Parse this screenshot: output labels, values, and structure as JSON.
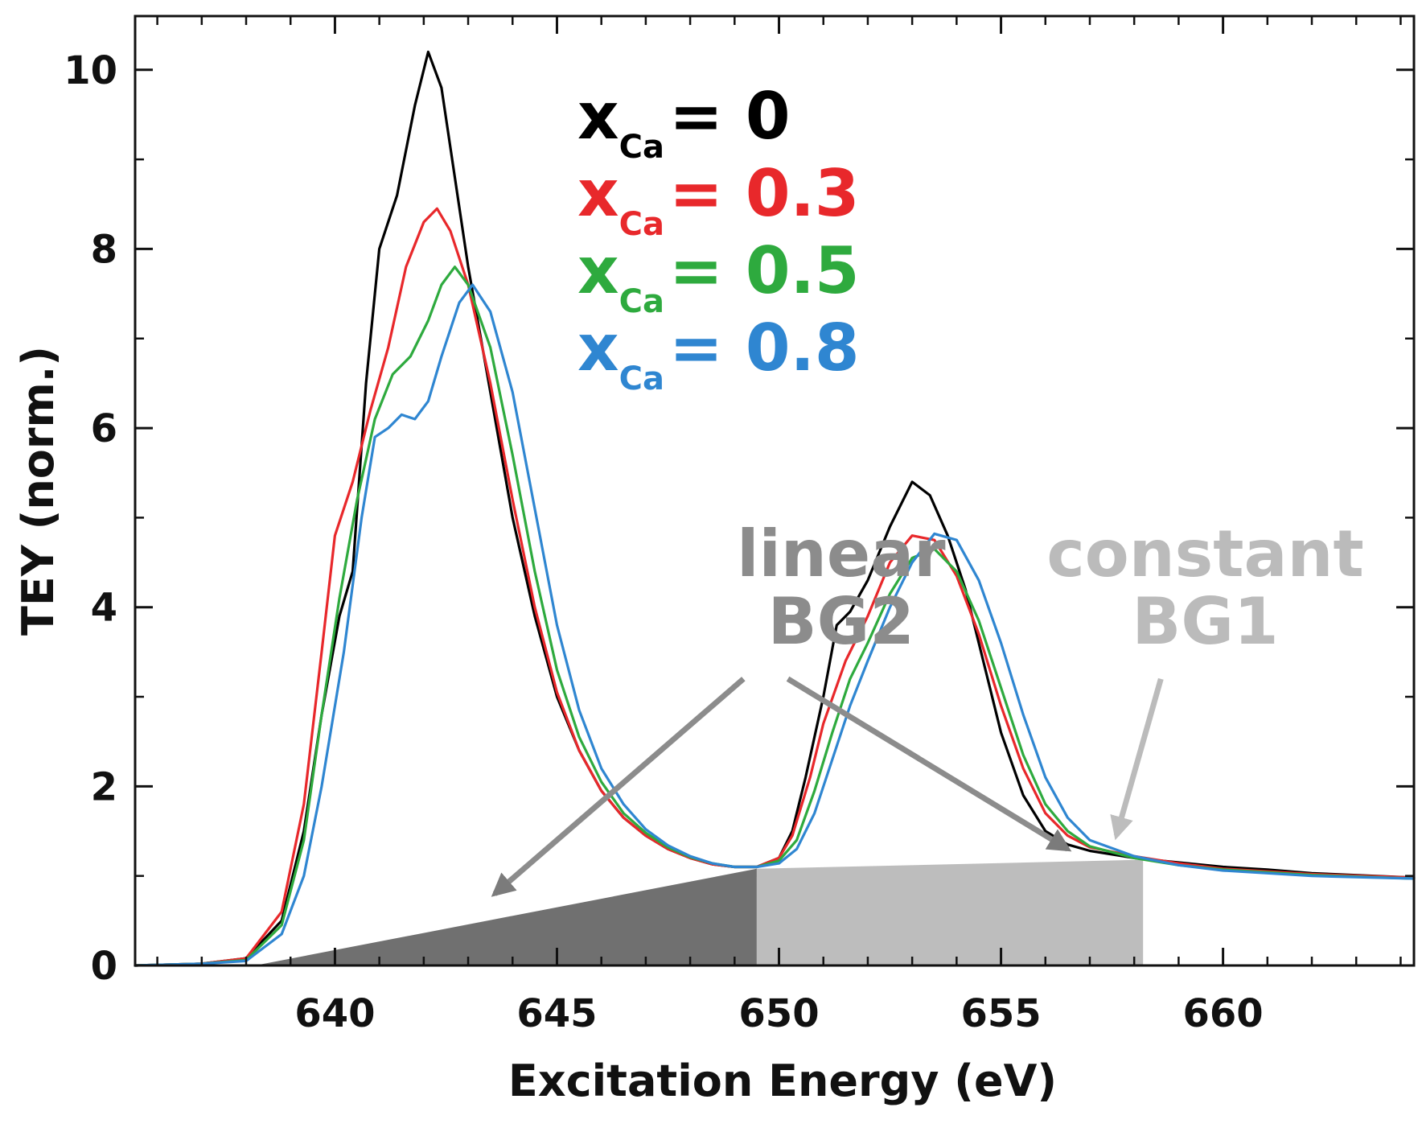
{
  "chart_data": {
    "type": "line",
    "title": "",
    "xlabel": "Excitation Energy (eV)",
    "ylabel": "TEY (norm.)",
    "xlim": [
      635.5,
      664.3
    ],
    "ylim": [
      0,
      10.6
    ],
    "xticks": [
      640,
      645,
      650,
      655,
      660
    ],
    "yticks": [
      0,
      2,
      4,
      6,
      8,
      10
    ],
    "grid": false,
    "legend": {
      "position": "top-center",
      "symbol": "x",
      "subscript": "Ca"
    },
    "series": [
      {
        "name": "x_Ca = 0",
        "label_value": "0",
        "color": "#000000",
        "points": [
          [
            635.5,
            0
          ],
          [
            637,
            0.02
          ],
          [
            638,
            0.08
          ],
          [
            638.8,
            0.5
          ],
          [
            639.3,
            1.5
          ],
          [
            639.7,
            2.8
          ],
          [
            640.1,
            3.9
          ],
          [
            640.4,
            4.4
          ],
          [
            640.7,
            6.5
          ],
          [
            641,
            8.0
          ],
          [
            641.4,
            8.6
          ],
          [
            641.8,
            9.6
          ],
          [
            642.1,
            10.2
          ],
          [
            642.4,
            9.8
          ],
          [
            642.7,
            8.8
          ],
          [
            643,
            7.8
          ],
          [
            643.5,
            6.4
          ],
          [
            644,
            5.0
          ],
          [
            644.5,
            3.9
          ],
          [
            645,
            3.0
          ],
          [
            645.5,
            2.4
          ],
          [
            646,
            1.95
          ],
          [
            646.5,
            1.65
          ],
          [
            647,
            1.45
          ],
          [
            647.5,
            1.3
          ],
          [
            648,
            1.2
          ],
          [
            648.5,
            1.13
          ],
          [
            649,
            1.1
          ],
          [
            649.5,
            1.1
          ],
          [
            650,
            1.2
          ],
          [
            650.3,
            1.5
          ],
          [
            650.6,
            2.1
          ],
          [
            651,
            3.0
          ],
          [
            651.3,
            3.8
          ],
          [
            651.6,
            3.95
          ],
          [
            652,
            4.3
          ],
          [
            652.5,
            4.9
          ],
          [
            653,
            5.4
          ],
          [
            653.4,
            5.25
          ],
          [
            653.8,
            4.8
          ],
          [
            654.2,
            4.2
          ],
          [
            654.6,
            3.4
          ],
          [
            655,
            2.6
          ],
          [
            655.5,
            1.9
          ],
          [
            656,
            1.5
          ],
          [
            656.5,
            1.35
          ],
          [
            657,
            1.28
          ],
          [
            658,
            1.2
          ],
          [
            659,
            1.15
          ],
          [
            660,
            1.1
          ],
          [
            661,
            1.07
          ],
          [
            662,
            1.03
          ],
          [
            664.3,
            0.98
          ]
        ]
      },
      {
        "name": "x_Ca = 0.3",
        "label_value": "0.3",
        "color": "#e8282b",
        "points": [
          [
            635.5,
            0
          ],
          [
            637,
            0.02
          ],
          [
            638,
            0.08
          ],
          [
            638.8,
            0.6
          ],
          [
            639.3,
            1.8
          ],
          [
            639.7,
            3.5
          ],
          [
            640,
            4.8
          ],
          [
            640.4,
            5.4
          ],
          [
            640.8,
            6.2
          ],
          [
            641.2,
            6.9
          ],
          [
            641.6,
            7.8
          ],
          [
            642,
            8.3
          ],
          [
            642.3,
            8.45
          ],
          [
            642.6,
            8.2
          ],
          [
            643,
            7.6
          ],
          [
            643.5,
            6.5
          ],
          [
            644,
            5.2
          ],
          [
            644.5,
            4.0
          ],
          [
            645,
            3.05
          ],
          [
            645.5,
            2.4
          ],
          [
            646,
            1.95
          ],
          [
            646.5,
            1.65
          ],
          [
            647,
            1.45
          ],
          [
            647.5,
            1.3
          ],
          [
            648,
            1.2
          ],
          [
            648.5,
            1.13
          ],
          [
            649,
            1.1
          ],
          [
            649.5,
            1.1
          ],
          [
            650,
            1.2
          ],
          [
            650.3,
            1.45
          ],
          [
            650.7,
            2.1
          ],
          [
            651,
            2.7
          ],
          [
            651.5,
            3.4
          ],
          [
            652,
            3.9
          ],
          [
            652.5,
            4.5
          ],
          [
            653,
            4.8
          ],
          [
            653.5,
            4.75
          ],
          [
            654,
            4.35
          ],
          [
            654.5,
            3.7
          ],
          [
            655,
            2.9
          ],
          [
            655.5,
            2.2
          ],
          [
            656,
            1.7
          ],
          [
            656.5,
            1.45
          ],
          [
            657,
            1.32
          ],
          [
            658,
            1.22
          ],
          [
            659,
            1.14
          ],
          [
            660,
            1.08
          ],
          [
            661,
            1.05
          ],
          [
            662,
            1.02
          ],
          [
            664.3,
            0.98
          ]
        ]
      },
      {
        "name": "x_Ca = 0.5",
        "label_value": "0.5",
        "color": "#2eaa3e",
        "points": [
          [
            635.5,
            0
          ],
          [
            637,
            0.02
          ],
          [
            638,
            0.06
          ],
          [
            638.8,
            0.45
          ],
          [
            639.3,
            1.4
          ],
          [
            639.7,
            2.8
          ],
          [
            640.1,
            4.1
          ],
          [
            640.5,
            5.2
          ],
          [
            640.9,
            6.1
          ],
          [
            641.3,
            6.6
          ],
          [
            641.7,
            6.8
          ],
          [
            642.1,
            7.2
          ],
          [
            642.4,
            7.6
          ],
          [
            642.7,
            7.8
          ],
          [
            643,
            7.6
          ],
          [
            643.5,
            6.9
          ],
          [
            644,
            5.7
          ],
          [
            644.5,
            4.4
          ],
          [
            645,
            3.3
          ],
          [
            645.5,
            2.55
          ],
          [
            646,
            2.05
          ],
          [
            646.5,
            1.7
          ],
          [
            647,
            1.48
          ],
          [
            647.5,
            1.32
          ],
          [
            648,
            1.21
          ],
          [
            648.5,
            1.14
          ],
          [
            649,
            1.1
          ],
          [
            649.5,
            1.1
          ],
          [
            650,
            1.17
          ],
          [
            650.4,
            1.4
          ],
          [
            650.8,
            1.95
          ],
          [
            651.2,
            2.6
          ],
          [
            651.6,
            3.2
          ],
          [
            652,
            3.6
          ],
          [
            652.5,
            4.15
          ],
          [
            653,
            4.55
          ],
          [
            653.5,
            4.65
          ],
          [
            654,
            4.4
          ],
          [
            654.5,
            3.85
          ],
          [
            655,
            3.1
          ],
          [
            655.5,
            2.35
          ],
          [
            656,
            1.8
          ],
          [
            656.5,
            1.5
          ],
          [
            657,
            1.33
          ],
          [
            658,
            1.2
          ],
          [
            659,
            1.12
          ],
          [
            660,
            1.07
          ],
          [
            661,
            1.04
          ],
          [
            662,
            1.01
          ],
          [
            664.3,
            0.97
          ]
        ]
      },
      {
        "name": "x_Ca = 0.8",
        "label_value": "0.8",
        "color": "#2f86d1",
        "points": [
          [
            635.5,
            0
          ],
          [
            637,
            0.02
          ],
          [
            638,
            0.05
          ],
          [
            638.8,
            0.35
          ],
          [
            639.3,
            1.0
          ],
          [
            639.7,
            2.0
          ],
          [
            640.2,
            3.5
          ],
          [
            640.6,
            5.0
          ],
          [
            640.9,
            5.9
          ],
          [
            641.2,
            6.0
          ],
          [
            641.5,
            6.15
          ],
          [
            641.8,
            6.1
          ],
          [
            642.1,
            6.3
          ],
          [
            642.4,
            6.8
          ],
          [
            642.8,
            7.4
          ],
          [
            643.1,
            7.6
          ],
          [
            643.5,
            7.3
          ],
          [
            644,
            6.4
          ],
          [
            644.5,
            5.1
          ],
          [
            645,
            3.8
          ],
          [
            645.5,
            2.85
          ],
          [
            646,
            2.2
          ],
          [
            646.5,
            1.8
          ],
          [
            647,
            1.52
          ],
          [
            647.5,
            1.34
          ],
          [
            648,
            1.22
          ],
          [
            648.5,
            1.14
          ],
          [
            649,
            1.1
          ],
          [
            649.5,
            1.1
          ],
          [
            650,
            1.14
          ],
          [
            650.4,
            1.3
          ],
          [
            650.8,
            1.7
          ],
          [
            651.2,
            2.3
          ],
          [
            651.6,
            2.9
          ],
          [
            652,
            3.4
          ],
          [
            652.5,
            4.0
          ],
          [
            653,
            4.5
          ],
          [
            653.5,
            4.82
          ],
          [
            654,
            4.75
          ],
          [
            654.5,
            4.3
          ],
          [
            655,
            3.6
          ],
          [
            655.5,
            2.8
          ],
          [
            656,
            2.1
          ],
          [
            656.5,
            1.65
          ],
          [
            657,
            1.4
          ],
          [
            658,
            1.22
          ],
          [
            659,
            1.12
          ],
          [
            660,
            1.06
          ],
          [
            661,
            1.03
          ],
          [
            662,
            1.0
          ],
          [
            664.3,
            0.97
          ]
        ]
      }
    ],
    "background_regions": [
      {
        "name": "linear BG2",
        "kind": "linear",
        "x_start": 638.2,
        "x_end": 649.5,
        "y_start": 0,
        "y_end": 1.08,
        "color": "#707070"
      },
      {
        "name": "constant BG1",
        "kind": "constant",
        "x_start": 649.5,
        "x_end": 658.2,
        "y_start": 1.08,
        "y_end": 1.18,
        "color": "#bdbdbd"
      }
    ],
    "annotations": [
      {
        "id": "linear-bg2",
        "lines": [
          "linear",
          "BG2"
        ],
        "color": "#8c8c8c",
        "text_at": [
          651.4,
          4.35
        ],
        "arrows": [
          {
            "from": [
              649.2,
              3.2
            ],
            "to": [
              643.6,
              0.8
            ]
          },
          {
            "from": [
              650.2,
              3.2
            ],
            "to": [
              656.5,
              1.3
            ]
          }
        ]
      },
      {
        "id": "constant-bg1",
        "lines": [
          "constant",
          "BG1"
        ],
        "color": "#bbbbbb",
        "text_at": [
          659.6,
          4.35
        ],
        "arrows": [
          {
            "from": [
              658.6,
              3.2
            ],
            "to": [
              657.6,
              1.45
            ]
          }
        ]
      }
    ]
  }
}
